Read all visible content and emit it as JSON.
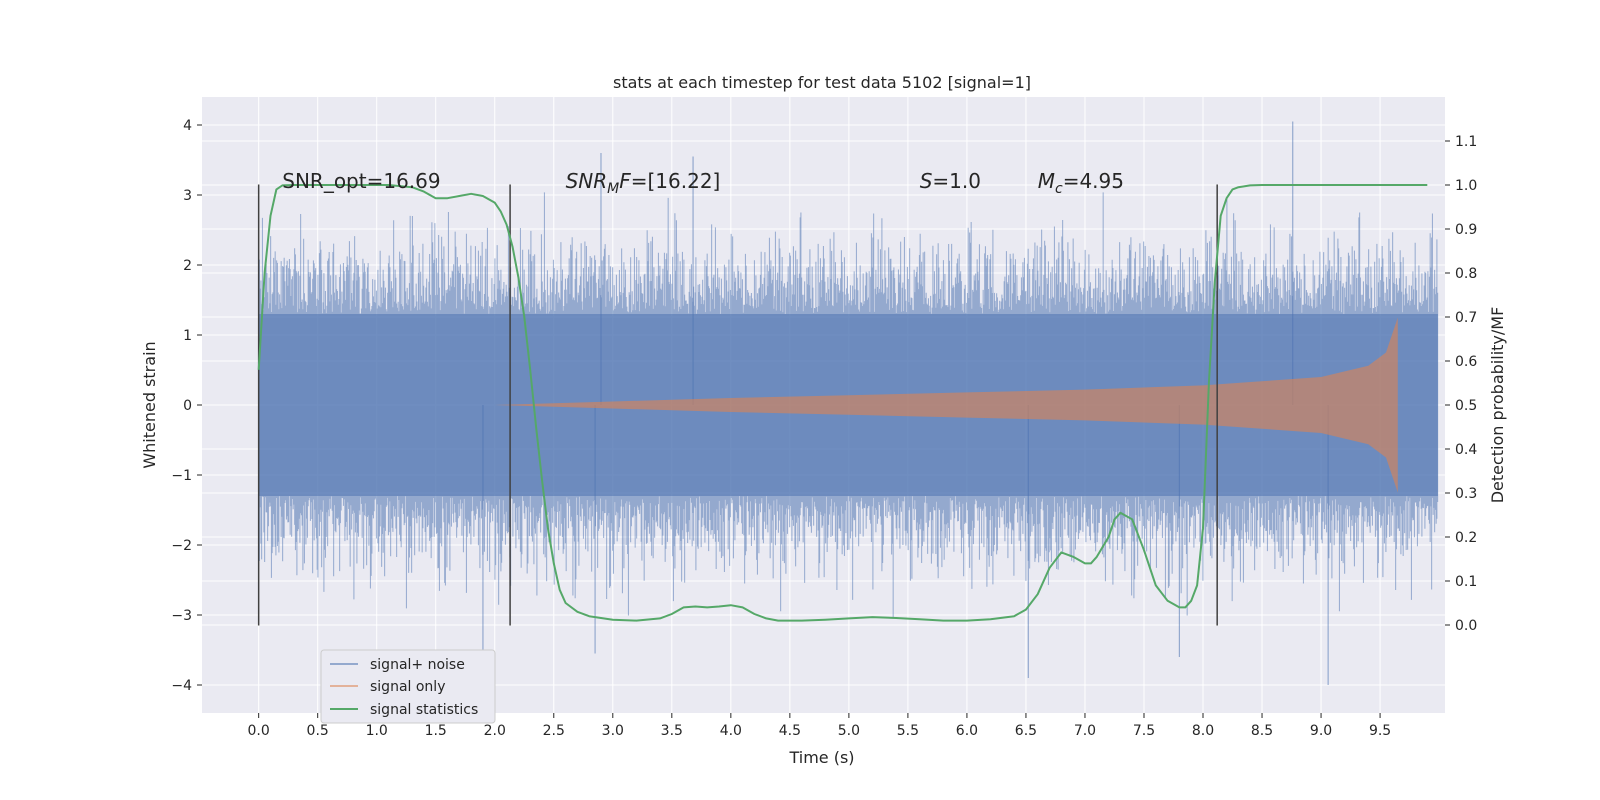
{
  "chart_data": {
    "type": "line",
    "title": "stats at each timestep for test data 5102 [signal=1]",
    "xlabel": "Time (s)",
    "ylabel": "Whitened strain",
    "y2label": "Detection probability/MF",
    "xlim": [
      -0.48,
      10.05
    ],
    "ylim": [
      -4.4,
      4.4
    ],
    "y2lim": [
      -0.2,
      1.2
    ],
    "x_ticks": [
      0.0,
      0.5,
      1.0,
      1.5,
      2.0,
      2.5,
      3.0,
      3.5,
      4.0,
      4.5,
      5.0,
      5.5,
      6.0,
      6.5,
      7.0,
      7.5,
      8.0,
      8.5,
      9.0,
      9.5
    ],
    "x_tick_labels": [
      "0.0",
      "0.5",
      "1.0",
      "1.5",
      "2.0",
      "2.5",
      "3.0",
      "3.5",
      "4.0",
      "4.5",
      "5.0",
      "5.5",
      "6.0",
      "6.5",
      "7.0",
      "7.5",
      "8.0",
      "8.5",
      "9.0",
      "9.5"
    ],
    "y_ticks": [
      4,
      3,
      2,
      1,
      0,
      -1,
      -2,
      -3,
      -4
    ],
    "y_tick_labels": [
      "4",
      "3",
      "2",
      "1",
      "0",
      "−1",
      "−2",
      "−3",
      "−4"
    ],
    "y2_ticks": [
      1.1,
      1.0,
      0.9,
      0.8,
      0.7,
      0.6,
      0.5,
      0.4,
      0.3,
      0.2,
      0.1,
      0.0
    ],
    "y2_tick_labels": [
      "1.1",
      "1.0",
      "0.9",
      "0.8",
      "0.7",
      "0.6",
      "0.5",
      "0.4",
      "0.3",
      "0.2",
      "0.1",
      "0.0"
    ],
    "grid": true,
    "legend_position": "lower-left",
    "annotations": [
      {
        "text": "SNR_opt=16.69",
        "x": 0.2,
        "y": 3.2
      },
      {
        "text": "SNR_MF=[16.22]",
        "x": 2.6,
        "y": 3.2,
        "italic_parts": true
      },
      {
        "text": "S=1.0",
        "x": 5.6,
        "y": 3.2
      },
      {
        "text": "M_c=4.95",
        "x": 6.6,
        "y": 3.2
      }
    ],
    "vlines": {
      "x": [
        0.0,
        2.13,
        8.12
      ],
      "y_range": [
        -3.15,
        3.15
      ],
      "color": "#404040"
    },
    "series": [
      {
        "name": "signal+ noise",
        "color": "#4c72b0",
        "axis": "left",
        "kind": "noise",
        "x_range": [
          0.0,
          9.99
        ],
        "core_amplitude": 1.3,
        "peak_extremes": {
          "max": 4.05,
          "min": -4.0
        }
      },
      {
        "name": "signal only",
        "color": "#dd8452",
        "axis": "left",
        "kind": "chirp",
        "x_range": [
          2.0,
          9.65
        ],
        "envelope": [
          [
            2.0,
            0.0
          ],
          [
            3.0,
            0.05
          ],
          [
            4.0,
            0.1
          ],
          [
            5.0,
            0.14
          ],
          [
            6.0,
            0.18
          ],
          [
            7.0,
            0.22
          ],
          [
            8.0,
            0.28
          ],
          [
            9.0,
            0.4
          ],
          [
            9.4,
            0.56
          ],
          [
            9.55,
            0.75
          ],
          [
            9.65,
            1.25
          ]
        ]
      },
      {
        "name": "signal statistics",
        "color": "#55a868",
        "axis": "right",
        "x": [
          0.0,
          0.05,
          0.1,
          0.15,
          0.2,
          0.3,
          0.5,
          0.7,
          0.9,
          1.1,
          1.3,
          1.4,
          1.5,
          1.6,
          1.7,
          1.8,
          1.9,
          2.0,
          2.05,
          2.1,
          2.15,
          2.2,
          2.25,
          2.3,
          2.35,
          2.4,
          2.45,
          2.5,
          2.55,
          2.6,
          2.7,
          2.8,
          3.0,
          3.2,
          3.4,
          3.5,
          3.6,
          3.7,
          3.8,
          3.9,
          4.0,
          4.1,
          4.2,
          4.3,
          4.4,
          4.6,
          4.8,
          5.0,
          5.2,
          5.4,
          5.6,
          5.8,
          6.0,
          6.2,
          6.4,
          6.5,
          6.6,
          6.7,
          6.8,
          6.9,
          7.0,
          7.05,
          7.1,
          7.2,
          7.25,
          7.3,
          7.4,
          7.5,
          7.6,
          7.7,
          7.8,
          7.85,
          7.9,
          7.95,
          8.0,
          8.05,
          8.1,
          8.15,
          8.2,
          8.25,
          8.3,
          8.4,
          8.5,
          8.7,
          9.0,
          9.3,
          9.6,
          9.9
        ],
        "values": [
          0.58,
          0.8,
          0.93,
          0.99,
          0.999,
          1.0,
          1.0,
          1.0,
          1.0,
          1.0,
          0.995,
          0.985,
          0.97,
          0.97,
          0.975,
          0.98,
          0.975,
          0.96,
          0.94,
          0.91,
          0.86,
          0.79,
          0.7,
          0.58,
          0.45,
          0.33,
          0.22,
          0.14,
          0.08,
          0.05,
          0.03,
          0.02,
          0.012,
          0.01,
          0.015,
          0.025,
          0.04,
          0.042,
          0.04,
          0.042,
          0.045,
          0.04,
          0.025,
          0.015,
          0.01,
          0.01,
          0.012,
          0.015,
          0.018,
          0.016,
          0.013,
          0.01,
          0.01,
          0.013,
          0.02,
          0.035,
          0.07,
          0.13,
          0.165,
          0.155,
          0.14,
          0.14,
          0.155,
          0.2,
          0.24,
          0.255,
          0.24,
          0.17,
          0.09,
          0.055,
          0.04,
          0.04,
          0.055,
          0.09,
          0.22,
          0.55,
          0.78,
          0.93,
          0.97,
          0.99,
          0.995,
          0.999,
          1.0,
          1.0,
          1.0,
          1.0,
          1.0,
          1.0
        ]
      }
    ]
  }
}
